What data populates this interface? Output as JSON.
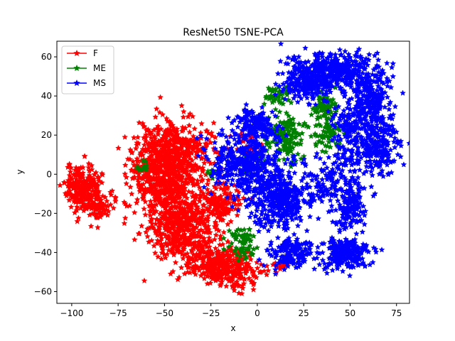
{
  "chart_data": {
    "type": "scatter",
    "title": "ResNet50 TSNE-PCA",
    "xlabel": "x",
    "ylabel": "y",
    "xlim": [
      -108,
      82
    ],
    "ylim": [
      -66,
      68
    ],
    "xticks": [
      -100,
      -75,
      -50,
      -25,
      0,
      25,
      50,
      75
    ],
    "yticks": [
      -60,
      -40,
      -20,
      0,
      20,
      40,
      60
    ],
    "xtick_labels": [
      "−100",
      "−75",
      "−50",
      "−25",
      "0",
      "25",
      "50",
      "75"
    ],
    "ytick_labels": [
      "−60",
      "−40",
      "−20",
      "0",
      "20",
      "40",
      "60"
    ],
    "marker": "star",
    "grid": false,
    "legend_position": "top-left",
    "series": [
      {
        "name": "F",
        "color": "#ff0000",
        "clusters": [
          {
            "cx": -93,
            "cy": -7,
            "sx": 5,
            "sy": 6,
            "n": 260
          },
          {
            "cx": -85,
            "cy": -18,
            "sx": 4,
            "sy": 3,
            "n": 60
          },
          {
            "cx": -50,
            "cy": 0,
            "sx": 9,
            "sy": 12,
            "n": 700
          },
          {
            "cx": -40,
            "cy": -28,
            "sx": 8,
            "sy": 9,
            "n": 420
          },
          {
            "cx": -42,
            "cy": 13,
            "sx": 10,
            "sy": 6,
            "n": 260
          },
          {
            "cx": -22,
            "cy": -45,
            "sx": 8,
            "sy": 5,
            "n": 260
          },
          {
            "cx": -10,
            "cy": -50,
            "sx": 7,
            "sy": 4,
            "n": 120
          },
          {
            "cx": -20,
            "cy": -15,
            "sx": 5,
            "sy": 6,
            "n": 160
          },
          {
            "cx": -5,
            "cy": 15,
            "sx": 3,
            "sy": 3,
            "n": 40
          },
          {
            "cx": 12,
            "cy": -47,
            "sx": 2,
            "sy": 1,
            "n": 15
          }
        ]
      },
      {
        "name": "ME",
        "color": "#008000",
        "clusters": [
          {
            "cx": 15,
            "cy": 20,
            "sx": 5,
            "sy": 7,
            "n": 150
          },
          {
            "cx": 37,
            "cy": 34,
            "sx": 3,
            "sy": 4,
            "n": 90
          },
          {
            "cx": 38,
            "cy": 20,
            "sx": 4,
            "sy": 4,
            "n": 60
          },
          {
            "cx": -8,
            "cy": -35,
            "sx": 3,
            "sy": 4,
            "n": 70
          },
          {
            "cx": 10,
            "cy": 40,
            "sx": 4,
            "sy": 2,
            "n": 40
          },
          {
            "cx": -62,
            "cy": 3,
            "sx": 2,
            "sy": 2,
            "n": 12
          },
          {
            "cx": -25,
            "cy": 1,
            "sx": 2,
            "sy": 2,
            "n": 8
          },
          {
            "cx": -5,
            "cy": 3,
            "sx": 3,
            "sy": 3,
            "n": 20
          }
        ]
      },
      {
        "name": "MS",
        "color": "#0000ff",
        "clusters": [
          {
            "cx": 40,
            "cy": 52,
            "sx": 12,
            "sy": 5,
            "n": 460
          },
          {
            "cx": 60,
            "cy": 38,
            "sx": 6,
            "sy": 8,
            "n": 220
          },
          {
            "cx": 65,
            "cy": 15,
            "sx": 5,
            "sy": 8,
            "n": 220
          },
          {
            "cx": 50,
            "cy": 20,
            "sx": 5,
            "sy": 10,
            "n": 160
          },
          {
            "cx": 0,
            "cy": 25,
            "sx": 6,
            "sy": 4,
            "n": 140
          },
          {
            "cx": -8,
            "cy": 5,
            "sx": 9,
            "sy": 8,
            "n": 340
          },
          {
            "cx": 10,
            "cy": -10,
            "sx": 9,
            "sy": 9,
            "n": 300
          },
          {
            "cx": 15,
            "cy": -15,
            "sx": 6,
            "sy": 4,
            "n": 120
          },
          {
            "cx": 48,
            "cy": -40,
            "sx": 6,
            "sy": 4,
            "n": 220
          },
          {
            "cx": 50,
            "cy": -18,
            "sx": 4,
            "sy": 6,
            "n": 140
          },
          {
            "cx": 18,
            "cy": -40,
            "sx": 6,
            "sy": 4,
            "n": 160
          },
          {
            "cx": 40,
            "cy": -5,
            "sx": 8,
            "sy": 6,
            "n": 120
          },
          {
            "cx": 25,
            "cy": 45,
            "sx": 8,
            "sy": 4,
            "n": 120
          }
        ]
      }
    ]
  }
}
